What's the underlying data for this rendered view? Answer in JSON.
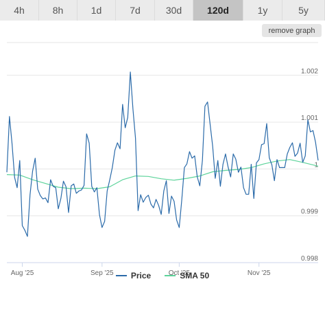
{
  "tabs": [
    {
      "label": "4h",
      "active": false
    },
    {
      "label": "8h",
      "active": false
    },
    {
      "label": "1d",
      "active": false
    },
    {
      "label": "7d",
      "active": false
    },
    {
      "label": "30d",
      "active": false
    },
    {
      "label": "120d",
      "active": true
    },
    {
      "label": "1y",
      "active": false
    },
    {
      "label": "5y",
      "active": false
    }
  ],
  "remove_graph_label": "remove graph",
  "chart_data": {
    "type": "line",
    "xlabel": "",
    "ylabel": "",
    "title": "",
    "x_ticks": [
      "Aug '25",
      "Sep '25",
      "Oct '25",
      "Nov '25"
    ],
    "x_range": [
      "2025-07-26",
      "2025-11-24"
    ],
    "y_ticks": [
      0.998,
      0.999,
      1,
      1.001,
      1.002
    ],
    "ylim": [
      0.998,
      1.0027
    ],
    "grid": true,
    "legend_position": "bottom",
    "series": [
      {
        "name": "Price",
        "color": "#2a6aa9",
        "points": [
          [
            "2025-07-26",
            0.99993
          ],
          [
            "2025-07-27",
            1.00112
          ],
          [
            "2025-07-28",
            1.00055
          ],
          [
            "2025-07-29",
            0.99982
          ],
          [
            "2025-07-30",
            0.9996
          ],
          [
            "2025-07-31",
            1.00018
          ],
          [
            "2025-08-01",
            0.99879
          ],
          [
            "2025-08-02",
            0.99869
          ],
          [
            "2025-08-03",
            0.99856
          ],
          [
            "2025-08-04",
            0.99945
          ],
          [
            "2025-08-05",
            0.99995
          ],
          [
            "2025-08-06",
            1.00023
          ],
          [
            "2025-08-07",
            0.99957
          ],
          [
            "2025-08-08",
            0.99943
          ],
          [
            "2025-08-09",
            0.99936
          ],
          [
            "2025-08-10",
            0.99938
          ],
          [
            "2025-08-11",
            0.99928
          ],
          [
            "2025-08-12",
            0.99977
          ],
          [
            "2025-08-13",
            0.99963
          ],
          [
            "2025-08-14",
            0.9996
          ],
          [
            "2025-08-15",
            0.99915
          ],
          [
            "2025-08-16",
            0.99937
          ],
          [
            "2025-08-17",
            0.99974
          ],
          [
            "2025-08-18",
            0.99962
          ],
          [
            "2025-08-19",
            0.99907
          ],
          [
            "2025-08-20",
            0.99964
          ],
          [
            "2025-08-21",
            0.99968
          ],
          [
            "2025-08-22",
            0.99948
          ],
          [
            "2025-08-23",
            0.99953
          ],
          [
            "2025-08-24",
            0.99955
          ],
          [
            "2025-08-25",
            0.99965
          ],
          [
            "2025-08-26",
            1.00075
          ],
          [
            "2025-08-27",
            1.00055
          ],
          [
            "2025-08-28",
            0.99963
          ],
          [
            "2025-08-29",
            0.99951
          ],
          [
            "2025-08-30",
            0.9996
          ],
          [
            "2025-08-31",
            0.99902
          ],
          [
            "2025-09-01",
            0.99875
          ],
          [
            "2025-09-02",
            0.99888
          ],
          [
            "2025-09-03",
            0.99953
          ],
          [
            "2025-09-04",
            0.99977
          ],
          [
            "2025-09-05",
            1.00003
          ],
          [
            "2025-09-06",
            1.0004
          ],
          [
            "2025-09-07",
            1.00056
          ],
          [
            "2025-09-08",
            1.00043
          ],
          [
            "2025-09-09",
            1.00138
          ],
          [
            "2025-09-10",
            1.00088
          ],
          [
            "2025-09-11",
            1.0011
          ],
          [
            "2025-09-12",
            1.00207
          ],
          [
            "2025-09-13",
            1.00128
          ],
          [
            "2025-09-14",
            1.00066
          ],
          [
            "2025-09-15",
            0.99911
          ],
          [
            "2025-09-16",
            0.99945
          ],
          [
            "2025-09-17",
            0.99929
          ],
          [
            "2025-09-18",
            0.99939
          ],
          [
            "2025-09-19",
            0.99944
          ],
          [
            "2025-09-20",
            0.99925
          ],
          [
            "2025-09-21",
            0.99917
          ],
          [
            "2025-09-22",
            0.99935
          ],
          [
            "2025-09-23",
            0.99922
          ],
          [
            "2025-09-24",
            0.99903
          ],
          [
            "2025-09-25",
            0.99953
          ],
          [
            "2025-09-26",
            0.99975
          ],
          [
            "2025-09-27",
            0.99905
          ],
          [
            "2025-09-28",
            0.99942
          ],
          [
            "2025-09-29",
            0.99931
          ],
          [
            "2025-09-30",
            0.99891
          ],
          [
            "2025-10-01",
            0.99875
          ],
          [
            "2025-10-02",
            0.99934
          ],
          [
            "2025-10-03",
            1.00003
          ],
          [
            "2025-10-04",
            1.00011
          ],
          [
            "2025-10-05",
            1.00037
          ],
          [
            "2025-10-06",
            1.00023
          ],
          [
            "2025-10-07",
            1.00028
          ],
          [
            "2025-10-08",
            0.99983
          ],
          [
            "2025-10-09",
            0.99964
          ],
          [
            "2025-10-10",
            1.00018
          ],
          [
            "2025-10-11",
            1.00134
          ],
          [
            "2025-10-12",
            1.00143
          ],
          [
            "2025-10-13",
            1.00096
          ],
          [
            "2025-10-14",
            1.00048
          ],
          [
            "2025-10-15",
            0.9998
          ],
          [
            "2025-10-16",
            1.00018
          ],
          [
            "2025-10-17",
            0.99963
          ],
          [
            "2025-10-18",
            1.0001
          ],
          [
            "2025-10-19",
            1.00032
          ],
          [
            "2025-10-20",
            1.00004
          ],
          [
            "2025-10-21",
            0.99983
          ],
          [
            "2025-10-22",
            1.00032
          ],
          [
            "2025-10-23",
            1.00021
          ],
          [
            "2025-10-24",
            0.99993
          ],
          [
            "2025-10-25",
            1.00004
          ],
          [
            "2025-10-26",
            0.9996
          ],
          [
            "2025-10-27",
            0.99946
          ],
          [
            "2025-10-28",
            0.99946
          ],
          [
            "2025-10-29",
            1.0001
          ],
          [
            "2025-10-30",
            0.99937
          ],
          [
            "2025-10-31",
            1.00013
          ],
          [
            "2025-11-01",
            1.0002
          ],
          [
            "2025-11-02",
            1.00052
          ],
          [
            "2025-11-03",
            1.00054
          ],
          [
            "2025-11-04",
            1.00097
          ],
          [
            "2025-11-05",
            1.00024
          ],
          [
            "2025-11-06",
            1.00009
          ],
          [
            "2025-11-07",
            0.99975
          ],
          [
            "2025-11-08",
            1.0002
          ],
          [
            "2025-11-09",
            1.00003
          ],
          [
            "2025-11-10",
            1.00003
          ],
          [
            "2025-11-11",
            1.00003
          ],
          [
            "2025-11-12",
            1.00032
          ],
          [
            "2025-11-13",
            1.00046
          ],
          [
            "2025-11-14",
            1.00056
          ],
          [
            "2025-11-15",
            1.00027
          ],
          [
            "2025-11-16",
            1.00034
          ],
          [
            "2025-11-17",
            1.00055
          ],
          [
            "2025-11-18",
            1.00014
          ],
          [
            "2025-11-19",
            1.00028
          ],
          [
            "2025-11-20",
            1.00105
          ],
          [
            "2025-11-21",
            1.00079
          ],
          [
            "2025-11-22",
            1.00082
          ],
          [
            "2025-11-23",
            1.00057
          ],
          [
            "2025-11-24",
            1.00018
          ]
        ]
      },
      {
        "name": "SMA 50",
        "color": "#5cd39a",
        "points": [
          [
            "2025-07-26",
            0.99988
          ],
          [
            "2025-07-31",
            0.99987
          ],
          [
            "2025-08-05",
            0.99977
          ],
          [
            "2025-08-10",
            0.99969
          ],
          [
            "2025-08-15",
            0.99961
          ],
          [
            "2025-08-20",
            0.99958
          ],
          [
            "2025-08-25",
            0.99959
          ],
          [
            "2025-08-30",
            0.99958
          ],
          [
            "2025-09-04",
            0.99962
          ],
          [
            "2025-09-09",
            0.99977
          ],
          [
            "2025-09-14",
            0.99985
          ],
          [
            "2025-09-19",
            0.99984
          ],
          [
            "2025-09-24",
            0.99979
          ],
          [
            "2025-09-29",
            0.99976
          ],
          [
            "2025-10-04",
            0.9998
          ],
          [
            "2025-10-09",
            0.99985
          ],
          [
            "2025-10-14",
            0.99994
          ],
          [
            "2025-10-19",
            0.99997
          ],
          [
            "2025-10-24",
            0.99999
          ],
          [
            "2025-10-29",
            1.00003
          ],
          [
            "2025-11-03",
            1.00011
          ],
          [
            "2025-11-08",
            1.00017
          ],
          [
            "2025-11-13",
            1.0002
          ],
          [
            "2025-11-18",
            1.00014
          ],
          [
            "2025-11-24",
            1.00006
          ]
        ]
      }
    ]
  }
}
